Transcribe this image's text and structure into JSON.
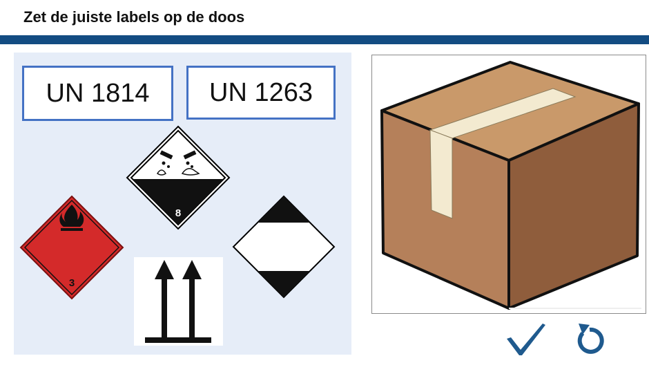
{
  "header": {
    "title": "Zet de juiste labels op de doos"
  },
  "labels": {
    "un_1814": "UN 1814",
    "un_1263": "UN 1263"
  },
  "symbols": [
    {
      "name": "corrosive",
      "class_number": "8",
      "icon": "corrosive-hazard-icon"
    },
    {
      "name": "flammable-liquid",
      "class_number": "3",
      "icon": "flame-hazard-icon"
    },
    {
      "name": "limited-quantity",
      "icon": "limited-quantity-icon"
    },
    {
      "name": "this-way-up",
      "icon": "this-way-up-arrows-icon"
    }
  ],
  "box": {
    "icon": "cardboard-box-icon"
  },
  "controls": {
    "check_icon": "checkmark-icon",
    "reset_icon": "reset-arrow-icon"
  },
  "colors": {
    "accent_bar": "#134c82",
    "label_border": "#4472c4",
    "panel_bg": "#e6edf8",
    "flammable_red": "#d42a2a"
  }
}
